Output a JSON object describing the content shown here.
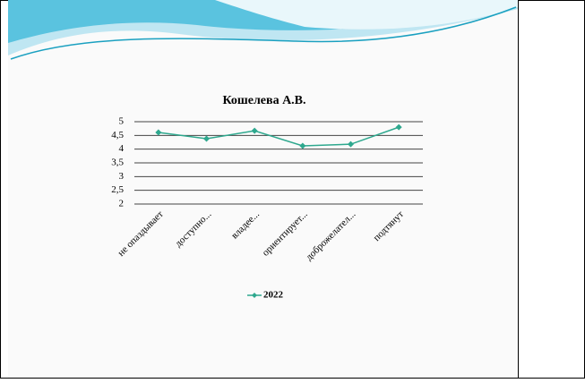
{
  "chart_data": {
    "type": "line",
    "title": "Кошелева А.В.",
    "categories": [
      "не опаздывает",
      "доступно...",
      "владее...",
      "ориентирует...",
      "доброжелател...",
      "подтянут"
    ],
    "series": [
      {
        "name": "2022",
        "color": "#2ea88e",
        "values": [
          4.61,
          4.38,
          4.67,
          4.12,
          4.18,
          4.8
        ]
      }
    ],
    "ylim": [
      2,
      5
    ],
    "yticks": [
      2,
      {
        "value": 2.5,
        "label": "2,5"
      },
      3,
      {
        "value": 3.5,
        "label": "3,5"
      },
      4,
      {
        "value": 4.5,
        "label": "4,5"
      },
      5
    ],
    "grid": true,
    "legend": "bottom"
  }
}
